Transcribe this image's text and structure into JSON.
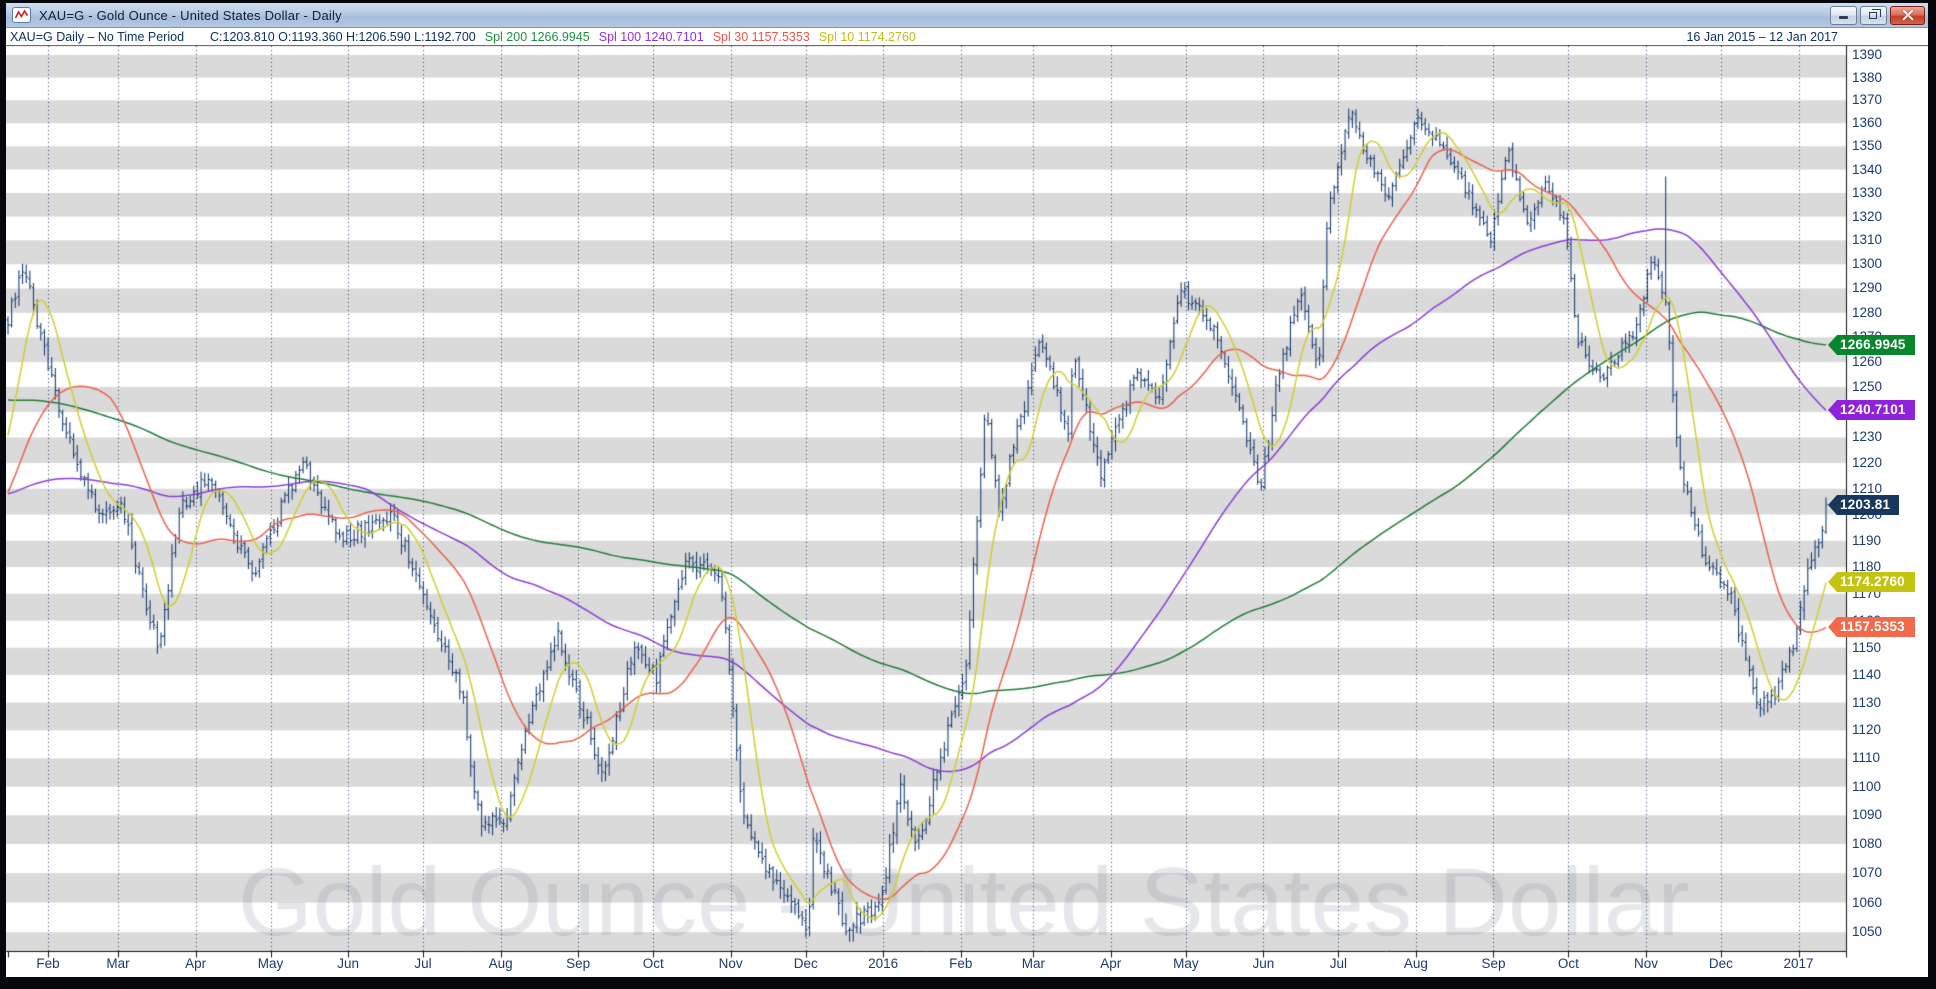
{
  "window": {
    "title": "XAU=G - Gold Ounce - United States Dollar - Daily",
    "controls": [
      "minimize",
      "restore",
      "close"
    ]
  },
  "info_bar": {
    "symbol_status": "XAU=G Daily –  No Time Period",
    "ohlc_text": "C:1203.810 O:1193.360 H:1206.590 L:1192.700",
    "overlays": [
      {
        "label": "Spl 200 1266.9945",
        "color": "#1f8f43"
      },
      {
        "label": "Spl 100 1240.7101",
        "color": "#9233d6"
      },
      {
        "label": "Spl 30 1157.5353",
        "color": "#e4564a"
      },
      {
        "label": "Spl 10 1174.2760",
        "color": "#c3bb1c"
      }
    ],
    "date_range": "16 Jan 2015  –  12 Jan 2017"
  },
  "chart_data": {
    "type": "ohlc",
    "instrument": "XAU=G - Gold Ounce - United States Dollar",
    "interval": "Daily",
    "date_start": "16 Jan 2015",
    "date_end": "12 Jan 2017",
    "watermark": "Gold Ounce - United States Dollar",
    "y_axis": {
      "min": 1050,
      "max": 1390,
      "step": 10,
      "scale": "log",
      "label_color": "#1d3a6e"
    },
    "x_axis": {
      "months": [
        {
          "label": "Feb",
          "f": 0.022
        },
        {
          "label": "Mar",
          "f": 0.0605
        },
        {
          "label": "Apr",
          "f": 0.1032
        },
        {
          "label": "May",
          "f": 0.1444
        },
        {
          "label": "Jun",
          "f": 0.1871
        },
        {
          "label": "Jul",
          "f": 0.2283
        },
        {
          "label": "Aug",
          "f": 0.271
        },
        {
          "label": "Sep",
          "f": 0.3136
        },
        {
          "label": "Oct",
          "f": 0.3549
        },
        {
          "label": "Nov",
          "f": 0.3975
        },
        {
          "label": "Dec",
          "f": 0.4388
        },
        {
          "label": "2016",
          "f": 0.4814
        },
        {
          "label": "Feb",
          "f": 0.5241
        },
        {
          "label": "Mar",
          "f": 0.564
        },
        {
          "label": "Apr",
          "f": 0.6066
        },
        {
          "label": "May",
          "f": 0.6479
        },
        {
          "label": "Jun",
          "f": 0.6905
        },
        {
          "label": "Jul",
          "f": 0.7318
        },
        {
          "label": "Aug",
          "f": 0.7744
        },
        {
          "label": "Sep",
          "f": 0.8171
        },
        {
          "label": "Oct",
          "f": 0.8583
        },
        {
          "label": "Nov",
          "f": 0.901
        },
        {
          "label": "Dec",
          "f": 0.9422
        },
        {
          "label": "2017",
          "f": 0.9849
        }
      ]
    },
    "stripe_color": "#dadada",
    "bar_color": "#1d3f73",
    "gridline_color": "rgba(15,35,75,0.85)",
    "bar_count": 500,
    "last_bar": {
      "open": 1193.36,
      "high": 1206.59,
      "low": 1192.7,
      "close": 1203.81
    },
    "spike_bar": {
      "f": 0.9119,
      "high": 1337
    },
    "close_flag": {
      "value": "1203.81",
      "price": 1203.81,
      "color": "#17375d"
    },
    "smas": [
      {
        "name": "Spl 200",
        "period": 200,
        "value": "1266.9945",
        "line_color": "#217a38",
        "flag_color": "#07862d"
      },
      {
        "name": "Spl 100",
        "period": 100,
        "value": "1240.7101",
        "line_color": "#8a3fd1",
        "flag_color": "#8d22da"
      },
      {
        "name": "Spl 30",
        "period": 30,
        "value": "1157.5353",
        "line_color": "#e8634f",
        "flag_color": "#f26a4c"
      },
      {
        "name": "Spl 10",
        "period": 10,
        "value": "1174.2760",
        "line_color": "#cfcf30",
        "flag_color": "#c2c411"
      }
    ],
    "close_keyframes": [
      [
        0.0,
        1277
      ],
      [
        0.0083,
        1300
      ],
      [
        0.0289,
        1238
      ],
      [
        0.044,
        1209
      ],
      [
        0.0536,
        1200
      ],
      [
        0.0619,
        1207
      ],
      [
        0.0825,
        1149
      ],
      [
        0.0949,
        1203
      ],
      [
        0.11,
        1214
      ],
      [
        0.1348,
        1178
      ],
      [
        0.1623,
        1221
      ],
      [
        0.1829,
        1190
      ],
      [
        0.2104,
        1201
      ],
      [
        0.227,
        1172
      ],
      [
        0.2366,
        1155
      ],
      [
        0.2503,
        1132
      ],
      [
        0.2545,
        1107
      ],
      [
        0.26,
        1086
      ],
      [
        0.2737,
        1089
      ],
      [
        0.2861,
        1124
      ],
      [
        0.3026,
        1154
      ],
      [
        0.3274,
        1104
      ],
      [
        0.3453,
        1152
      ],
      [
        0.3563,
        1138
      ],
      [
        0.3728,
        1184
      ],
      [
        0.392,
        1176
      ],
      [
        0.4044,
        1088
      ],
      [
        0.4209,
        1068
      ],
      [
        0.4402,
        1050
      ],
      [
        0.443,
        1084
      ],
      [
        0.4608,
        1051
      ],
      [
        0.4801,
        1060
      ],
      [
        0.4911,
        1102
      ],
      [
        0.4993,
        1077
      ],
      [
        0.5158,
        1118
      ],
      [
        0.5268,
        1141
      ],
      [
        0.5378,
        1244
      ],
      [
        0.5447,
        1201
      ],
      [
        0.5681,
        1270
      ],
      [
        0.5832,
        1232
      ],
      [
        0.586,
        1262
      ],
      [
        0.6011,
        1216
      ],
      [
        0.6217,
        1257
      ],
      [
        0.6341,
        1246
      ],
      [
        0.6451,
        1291
      ],
      [
        0.6644,
        1272
      ],
      [
        0.6891,
        1211
      ],
      [
        0.7001,
        1260
      ],
      [
        0.7111,
        1288
      ],
      [
        0.7207,
        1256
      ],
      [
        0.7263,
        1324
      ],
      [
        0.7386,
        1366
      ],
      [
        0.7483,
        1343
      ],
      [
        0.7593,
        1330
      ],
      [
        0.7758,
        1362
      ],
      [
        0.7937,
        1343
      ],
      [
        0.8061,
        1326
      ],
      [
        0.8157,
        1310
      ],
      [
        0.8253,
        1348
      ],
      [
        0.8363,
        1316
      ],
      [
        0.8459,
        1336
      ],
      [
        0.8569,
        1318
      ],
      [
        0.8624,
        1270
      ],
      [
        0.8762,
        1252
      ],
      [
        0.8954,
        1274
      ],
      [
        0.9051,
        1303
      ],
      [
        0.9119,
        1282
      ],
      [
        0.9188,
        1222
      ],
      [
        0.9312,
        1186
      ],
      [
        0.9477,
        1168
      ],
      [
        0.9615,
        1130
      ],
      [
        0.9711,
        1132
      ],
      [
        0.9821,
        1150
      ],
      [
        0.9904,
        1178
      ],
      [
        0.9986,
        1194
      ],
      [
        1.0,
        1203.81
      ]
    ],
    "sma_warmup_keyframes": [
      [
        -200,
        1293
      ],
      [
        -150,
        1293
      ],
      [
        -110,
        1258
      ],
      [
        -90,
        1228
      ],
      [
        -70,
        1222
      ],
      [
        -45,
        1178
      ],
      [
        -25,
        1185
      ],
      [
        -12,
        1212
      ],
      [
        -5,
        1218
      ],
      [
        -2,
        1234
      ],
      [
        -1,
        1262
      ]
    ]
  }
}
